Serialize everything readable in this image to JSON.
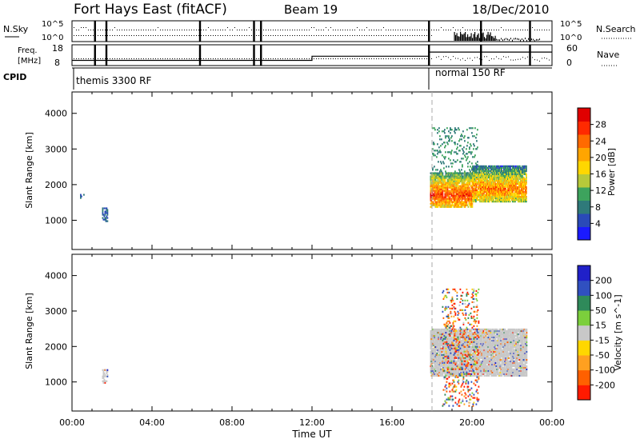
{
  "header": {
    "station": "Fort Hays East (fitACF)",
    "beam": "Beam 19",
    "date": "18/Dec/2010"
  },
  "status_panels": {
    "nsky_label": "N.Sky",
    "nsky_ticks": [
      "10^5",
      "10^0"
    ],
    "nsearch_label": "N.Search",
    "freq_label_line1": "Freq.",
    "freq_label_line2": "[MHz]",
    "freq_ticks": [
      "18",
      "8"
    ],
    "nave_label": "Nave",
    "nave_ticks": [
      "60",
      "0"
    ],
    "cpid_label": "CPID",
    "cpid_segments": [
      {
        "name": "themis 3300 RF",
        "start_hr": 0.0,
        "end_hr": 17.85
      },
      {
        "name": "normal 150 RF",
        "start_hr": 17.85,
        "end_hr": 24.0
      }
    ],
    "marker_hours": [
      1.15,
      1.72,
      6.4,
      9.1,
      9.45,
      17.85,
      20.45,
      22.9
    ],
    "freq_steps": [
      {
        "start_hr": 0.0,
        "end_hr": 12.0,
        "mhz": 10.5
      },
      {
        "start_hr": 12.0,
        "end_hr": 17.85,
        "mhz": 12.5
      },
      {
        "start_hr": 17.85,
        "end_hr": 24.0,
        "mhz": 14.5
      }
    ]
  },
  "power_colorbar": {
    "label": "Power [dB]",
    "ticks": [
      "28",
      "24",
      "20",
      "16",
      "12",
      "8",
      "4"
    ],
    "colors": [
      "#1a1aff",
      "#2a4ab8",
      "#2f7a7a",
      "#3da35d",
      "#b7c93a",
      "#ffd700",
      "#ffa500",
      "#ff6a00",
      "#ff2a00",
      "#e00000"
    ]
  },
  "velocity_colorbar": {
    "label": "Velocity [m s^-1]",
    "ticks": [
      "200",
      "100",
      "50",
      "15",
      "-15",
      "-50",
      "-100",
      "-200"
    ],
    "colors": [
      "#2020c8",
      "#3050c0",
      "#2f8a5a",
      "#7ccf3c",
      "#c8c8c8",
      "#ffd700",
      "#ffa020",
      "#ff6000",
      "#ff1a00"
    ]
  },
  "chart_data": [
    {
      "type": "heatmap",
      "title": "Power",
      "xlabel": "Time UT",
      "ylabel": "Slant Range [km]",
      "xlim_hr": [
        0,
        24
      ],
      "ylim_km": [
        180,
        4600
      ],
      "x_tick_labels": [
        "00:00",
        "04:00",
        "08:00",
        "12:00",
        "16:00",
        "20:00",
        "00:00"
      ],
      "y_tick_labels": [
        "1000",
        "2000",
        "3000",
        "4000"
      ],
      "zlim_db": [
        0,
        30
      ],
      "scatter_regions": [
        {
          "hr_start": 1.5,
          "hr_end": 1.75,
          "km_start": 950,
          "km_end": 1350,
          "dens": 0.5,
          "mean_db": 3
        },
        {
          "hr_start": 0.4,
          "hr_end": 0.6,
          "km_start": 1600,
          "km_end": 1720,
          "dens": 0.3,
          "mean_db": 3
        },
        {
          "hr_start": 17.9,
          "hr_end": 20.0,
          "km_start": 1350,
          "km_end": 2300,
          "dens": 0.8,
          "mean_db": 17
        },
        {
          "hr_start": 20.0,
          "hr_end": 22.7,
          "km_start": 1500,
          "km_end": 2500,
          "dens": 0.85,
          "mean_db": 14
        },
        {
          "hr_start": 18.0,
          "hr_end": 20.3,
          "km_start": 2300,
          "km_end": 3600,
          "dens": 0.12,
          "mean_db": 6
        }
      ]
    },
    {
      "type": "heatmap",
      "title": "Velocity",
      "xlabel": "Time UT",
      "ylabel": "Slant Range [km]",
      "xlim_hr": [
        0,
        24
      ],
      "ylim_km": [
        180,
        4600
      ],
      "x_tick_labels": [
        "00:00",
        "04:00",
        "08:00",
        "12:00",
        "16:00",
        "20:00",
        "00:00"
      ],
      "y_tick_labels": [
        "1000",
        "2000",
        "3000",
        "4000"
      ],
      "zlim_ms": [
        -250,
        250
      ],
      "scatter_regions": [
        {
          "hr_start": 1.5,
          "hr_end": 1.75,
          "km_start": 950,
          "km_end": 1350,
          "dens": 0.4,
          "mean_ms": 0
        },
        {
          "hr_start": 17.9,
          "hr_end": 22.7,
          "km_start": 1150,
          "km_end": 2500,
          "dens": 0.85,
          "mean_ms": 0
        },
        {
          "hr_start": 18.5,
          "hr_end": 20.3,
          "km_start": 300,
          "km_end": 3600,
          "dens": 0.15,
          "mean_ms": -120
        }
      ]
    }
  ]
}
